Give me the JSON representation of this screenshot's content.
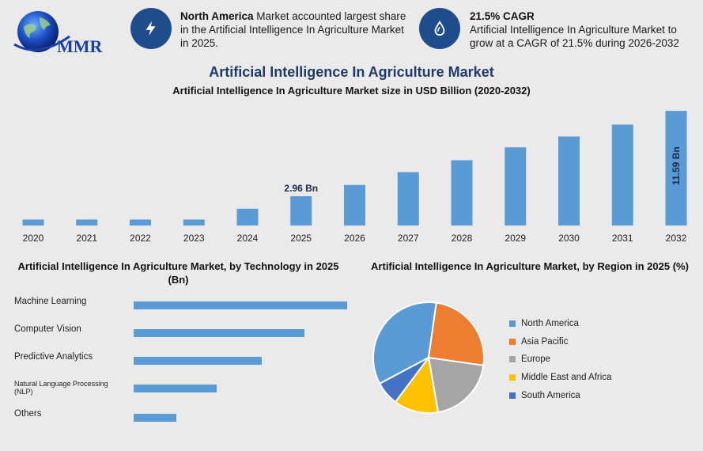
{
  "logo": {
    "text": "MMR"
  },
  "stat1": {
    "icon": "lightning-icon",
    "bold": "North America",
    "text": " Market accounted largest share in the Artificial Intelligence In Agriculture Market in 2025."
  },
  "stat2": {
    "icon": "drop-icon",
    "bold": "21.5% CAGR",
    "text": "Artificial Intelligence In Agriculture Market to grow at a CAGR of 21.5% during 2026-2032"
  },
  "title": "Artificial Intelligence In Agriculture Market",
  "subtitle": "Artificial Intelligence In Agriculture Market size in USD Billion (2020-2032)",
  "tech_title": "Artificial Intelligence In Agriculture Market, by Technology in 2025 (Bn)",
  "region_title": "Artificial Intelligence In Agriculture Market, by Region in 2025 (%)",
  "colors": {
    "bar": "#5b9bd5",
    "accent": "#1f4d8c",
    "title": "#1f3a68"
  },
  "chart_data": [
    {
      "type": "bar",
      "categories": [
        "2020",
        "2021",
        "2022",
        "2023",
        "2024",
        "2025",
        "2026",
        "2027",
        "2028",
        "2029",
        "2030",
        "2031",
        "2032"
      ],
      "values": [
        0.6,
        0.6,
        0.6,
        0.6,
        1.7,
        2.96,
        4.1,
        5.4,
        6.6,
        7.9,
        9.0,
        10.2,
        11.59
      ],
      "data_labels": {
        "2025": "2.96 Bn",
        "2032": "11.59 Bn"
      },
      "ylim": [
        0,
        12
      ]
    },
    {
      "type": "bar",
      "orientation": "horizontal",
      "categories": [
        "Machine Learning",
        "Computer Vision",
        "Predictive Analytics",
        "Natural Language Processing (NLP)",
        "Others"
      ],
      "values": [
        1.0,
        0.8,
        0.6,
        0.39,
        0.2
      ]
    },
    {
      "type": "pie",
      "labels": [
        "North America",
        "Asia Pacific",
        "Europe",
        "Middle East and Africa",
        "South America"
      ],
      "values": [
        35,
        25,
        20,
        13,
        7
      ],
      "colors": [
        "#5b9bd5",
        "#ed7d31",
        "#a5a5a5",
        "#ffc000",
        "#4472c4"
      ],
      "legend": "right"
    }
  ]
}
